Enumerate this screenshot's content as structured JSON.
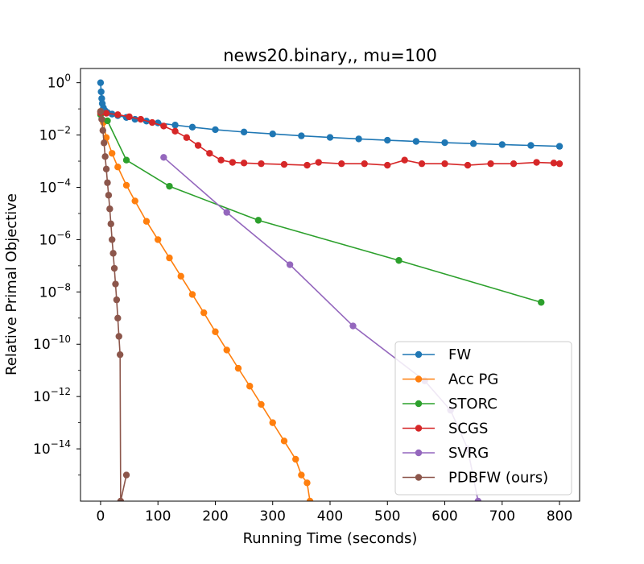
{
  "chart_data": {
    "type": "line",
    "title": "news20.binary,, mu=100",
    "xlabel": "Running Time (seconds)",
    "ylabel": "Relative Primal Objective",
    "xlim": [
      -35,
      835
    ],
    "ylim": [
      1e-16,
      3.5
    ],
    "yscale": "log",
    "xticks": [
      0,
      100,
      200,
      300,
      400,
      500,
      600,
      700,
      800
    ],
    "yticks": [
      {
        "exp": 0,
        "base": "10",
        "sup": "0"
      },
      {
        "exp": -2,
        "base": "10",
        "sup": "−2"
      },
      {
        "exp": -4,
        "base": "10",
        "sup": "−4"
      },
      {
        "exp": -6,
        "base": "10",
        "sup": "−6"
      },
      {
        "exp": -8,
        "base": "10",
        "sup": "−8"
      },
      {
        "exp": -10,
        "base": "10",
        "sup": "−10"
      },
      {
        "exp": -12,
        "base": "10",
        "sup": "−12"
      },
      {
        "exp": -14,
        "base": "10",
        "sup": "−14"
      }
    ],
    "legend_position": "lower-right",
    "series": [
      {
        "name": "FW",
        "color": "#1f77b4",
        "x": [
          0,
          1,
          2,
          3,
          5,
          8,
          12,
          20,
          30,
          45,
          60,
          80,
          100,
          130,
          160,
          200,
          250,
          300,
          350,
          400,
          450,
          500,
          550,
          600,
          650,
          700,
          750,
          800
        ],
        "y": [
          1.0,
          0.45,
          0.25,
          0.16,
          0.11,
          0.085,
          0.072,
          0.063,
          0.055,
          0.047,
          0.04,
          0.034,
          0.029,
          0.024,
          0.02,
          0.016,
          0.013,
          0.011,
          0.0093,
          0.0081,
          0.0071,
          0.0063,
          0.0057,
          0.0051,
          0.0047,
          0.0043,
          0.004,
          0.0037
        ]
      },
      {
        "name": "Acc PG",
        "color": "#ff7f0e",
        "x": [
          0,
          5,
          10,
          20,
          30,
          45,
          60,
          80,
          100,
          120,
          140,
          160,
          180,
          200,
          220,
          240,
          260,
          280,
          300,
          320,
          340,
          350,
          360,
          365
        ],
        "y": [
          0.08,
          0.03,
          0.008,
          0.002,
          0.0006,
          0.00012,
          3e-05,
          5e-06,
          1e-06,
          2e-07,
          4e-08,
          8e-09,
          1.6e-09,
          3e-10,
          6e-11,
          1.2e-11,
          2.5e-12,
          5e-13,
          1e-13,
          2e-14,
          4e-15,
          1e-15,
          5e-16,
          1e-16
        ]
      },
      {
        "name": "STORC",
        "color": "#2ca02c",
        "x": [
          0,
          12,
          45,
          120,
          275,
          520,
          768
        ],
        "y": [
          0.06,
          0.035,
          0.0011,
          0.00011,
          5.5e-06,
          1.6e-07,
          4e-09
        ]
      },
      {
        "name": "SCGS",
        "color": "#d62728",
        "x": [
          0,
          10,
          30,
          50,
          70,
          90,
          110,
          130,
          150,
          170,
          190,
          210,
          230,
          250,
          280,
          320,
          360,
          380,
          420,
          460,
          500,
          530,
          560,
          600,
          640,
          680,
          720,
          760,
          790,
          800
        ],
        "y": [
          0.07,
          0.068,
          0.06,
          0.05,
          0.04,
          0.03,
          0.022,
          0.014,
          0.008,
          0.004,
          0.002,
          0.0011,
          0.0009,
          0.00085,
          0.0008,
          0.00075,
          0.0007,
          0.0009,
          0.0008,
          0.0008,
          0.0007,
          0.0011,
          0.0008,
          0.0008,
          0.0007,
          0.0008,
          0.0008,
          0.0009,
          0.00085,
          0.0008
        ]
      },
      {
        "name": "SVRG",
        "color": "#9467bd",
        "x": [
          110,
          220,
          330,
          440,
          565,
          610,
          640,
          658
        ],
        "y": [
          0.0014,
          1.1e-05,
          1.1e-07,
          5e-10,
          4e-12,
          3e-13,
          1e-14,
          1e-16
        ]
      },
      {
        "name": "PDBFW (ours)",
        "color": "#8c564b",
        "x": [
          0,
          2,
          4,
          6,
          8,
          10,
          12,
          14,
          16,
          18,
          20,
          22,
          24,
          26,
          28,
          30,
          32,
          34,
          35,
          45
        ],
        "y": [
          0.08,
          0.04,
          0.015,
          0.005,
          0.0015,
          0.0005,
          0.00015,
          5e-05,
          1.5e-05,
          4e-06,
          1e-06,
          3e-07,
          8e-08,
          2e-08,
          5e-09,
          1e-09,
          2e-10,
          4e-11,
          1e-16,
          1e-15
        ]
      }
    ]
  }
}
